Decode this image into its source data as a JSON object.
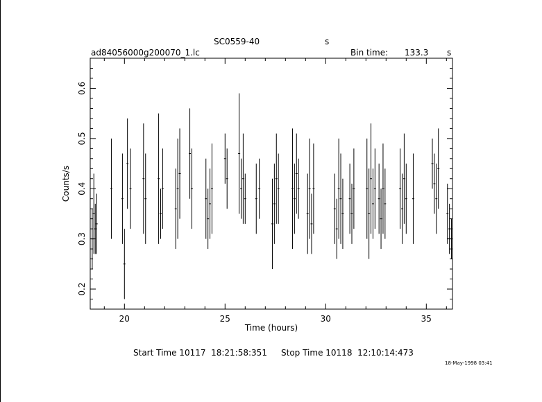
{
  "header": {
    "source": "SC0559-40",
    "source_suffix": "s",
    "filename": "ad84056000g200070_1.lc",
    "bin_label": "Bin time:",
    "bin_value": "133.3",
    "bin_unit": "s"
  },
  "footer": {
    "start_time": "Start Time 10117  18:21:58:351",
    "stop_time": "Stop Time 10118  12:10:14:473",
    "stamp": "18-May-1998 03:41"
  },
  "chart_data": {
    "type": "scatter",
    "xlabel": "Time (hours)",
    "ylabel": "Counts/s",
    "xlim": [
      18.3,
      36.3
    ],
    "ylim": [
      0.16,
      0.66
    ],
    "xticks": [
      20,
      25,
      30,
      35
    ],
    "yticks": [
      0.2,
      0.3,
      0.4,
      0.5,
      0.6
    ],
    "xtick_labels": [
      "20",
      "25",
      "30",
      "35"
    ],
    "ytick_labels": [
      "0.2",
      "0.3",
      "0.4",
      "0.5",
      "0.6"
    ],
    "grid": false,
    "error_bars": true,
    "points": [
      [
        18.4,
        0.3,
        0.06
      ],
      [
        18.48,
        0.35,
        0.08
      ],
      [
        18.55,
        0.32,
        0.05
      ],
      [
        18.62,
        0.33,
        0.06
      ],
      [
        19.35,
        0.4,
        0.1
      ],
      [
        19.9,
        0.38,
        0.09
      ],
      [
        20.0,
        0.25,
        0.07
      ],
      [
        20.15,
        0.45,
        0.09
      ],
      [
        20.3,
        0.4,
        0.08
      ],
      [
        20.95,
        0.42,
        0.11
      ],
      [
        21.05,
        0.38,
        0.09
      ],
      [
        21.7,
        0.42,
        0.13
      ],
      [
        21.8,
        0.35,
        0.05
      ],
      [
        21.9,
        0.4,
        0.08
      ],
      [
        22.55,
        0.36,
        0.08
      ],
      [
        22.65,
        0.4,
        0.1
      ],
      [
        22.75,
        0.43,
        0.09
      ],
      [
        23.25,
        0.47,
        0.09
      ],
      [
        23.35,
        0.4,
        0.08
      ],
      [
        24.05,
        0.38,
        0.08
      ],
      [
        24.15,
        0.34,
        0.06
      ],
      [
        24.25,
        0.37,
        0.07
      ],
      [
        24.35,
        0.4,
        0.09
      ],
      [
        25.0,
        0.46,
        0.05
      ],
      [
        25.1,
        0.42,
        0.06
      ],
      [
        25.7,
        0.47,
        0.12
      ],
      [
        25.8,
        0.4,
        0.06
      ],
      [
        25.9,
        0.42,
        0.09
      ],
      [
        26.0,
        0.38,
        0.05
      ],
      [
        26.55,
        0.38,
        0.07
      ],
      [
        26.7,
        0.4,
        0.06
      ],
      [
        27.35,
        0.33,
        0.09
      ],
      [
        27.45,
        0.37,
        0.08
      ],
      [
        27.55,
        0.42,
        0.09
      ],
      [
        27.65,
        0.4,
        0.07
      ],
      [
        28.35,
        0.4,
        0.12
      ],
      [
        28.45,
        0.38,
        0.07
      ],
      [
        28.55,
        0.43,
        0.08
      ],
      [
        28.65,
        0.4,
        0.06
      ],
      [
        29.1,
        0.35,
        0.08
      ],
      [
        29.2,
        0.4,
        0.1
      ],
      [
        29.3,
        0.33,
        0.06
      ],
      [
        29.4,
        0.4,
        0.09
      ],
      [
        30.45,
        0.36,
        0.07
      ],
      [
        30.55,
        0.32,
        0.06
      ],
      [
        30.65,
        0.4,
        0.1
      ],
      [
        30.75,
        0.38,
        0.09
      ],
      [
        30.85,
        0.35,
        0.07
      ],
      [
        31.2,
        0.38,
        0.07
      ],
      [
        31.3,
        0.35,
        0.06
      ],
      [
        31.4,
        0.4,
        0.08
      ],
      [
        32.05,
        0.4,
        0.1
      ],
      [
        32.15,
        0.35,
        0.09
      ],
      [
        32.25,
        0.42,
        0.11
      ],
      [
        32.35,
        0.37,
        0.07
      ],
      [
        32.45,
        0.4,
        0.08
      ],
      [
        32.65,
        0.38,
        0.07
      ],
      [
        32.75,
        0.34,
        0.06
      ],
      [
        32.85,
        0.4,
        0.09
      ],
      [
        32.95,
        0.37,
        0.07
      ],
      [
        33.7,
        0.4,
        0.08
      ],
      [
        33.8,
        0.36,
        0.07
      ],
      [
        33.9,
        0.42,
        0.09
      ],
      [
        34.0,
        0.38,
        0.07
      ],
      [
        34.35,
        0.38,
        0.09
      ],
      [
        35.3,
        0.45,
        0.05
      ],
      [
        35.4,
        0.41,
        0.06
      ],
      [
        35.5,
        0.38,
        0.07
      ],
      [
        35.6,
        0.44,
        0.08
      ],
      [
        36.05,
        0.35,
        0.06
      ],
      [
        36.15,
        0.32,
        0.05
      ],
      [
        36.25,
        0.3,
        0.04
      ]
    ]
  }
}
